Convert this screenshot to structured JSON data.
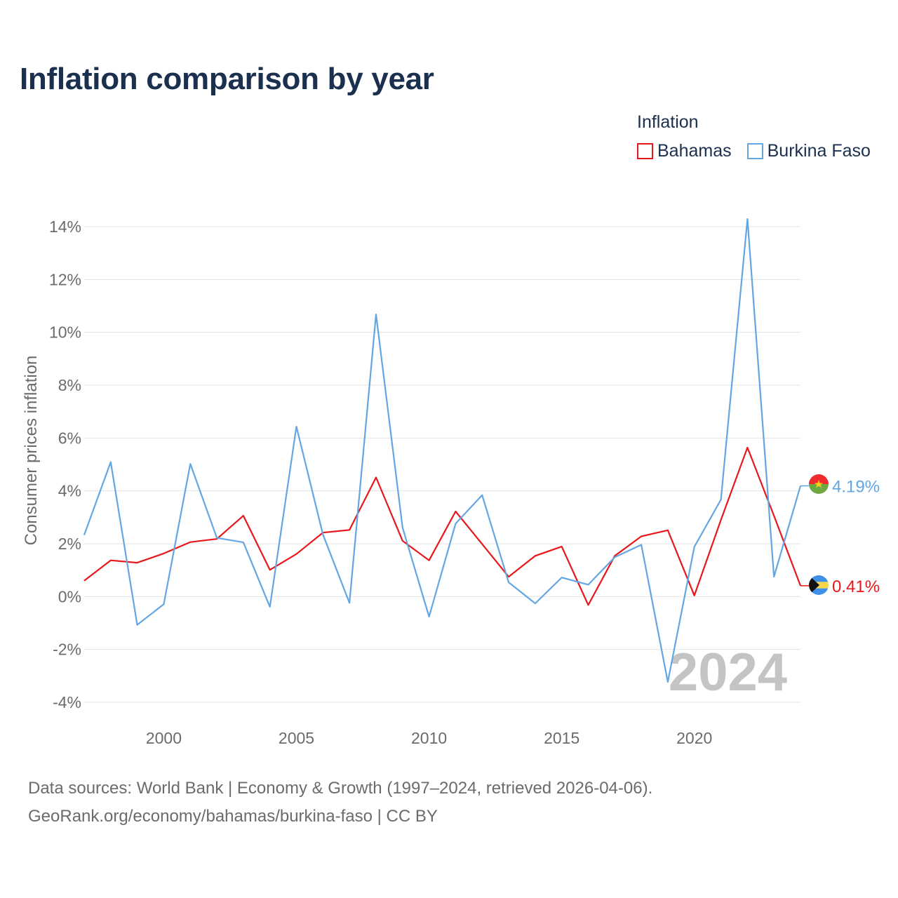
{
  "title": "Inflation comparison by year",
  "legend": {
    "title": "Inflation",
    "items": [
      {
        "name": "Bahamas",
        "color": "#e8171b"
      },
      {
        "name": "Burkina Faso",
        "color": "#64a6e4"
      }
    ]
  },
  "watermark_year": "2024",
  "source": {
    "line1": "Data sources: World Bank | Economy & Growth (1997–2024, retrieved 2026-04-06).",
    "line2": "GeoRank.org/economy/bahamas/burkina-faso | CC BY"
  },
  "chart_data": {
    "type": "line",
    "title": "Inflation comparison by year",
    "xlabel": "",
    "ylabel": "Consumer prices inflation",
    "xlim": [
      1997,
      2024
    ],
    "ylim": [
      -4,
      14
    ],
    "y_ticks": [
      -4,
      -2,
      0,
      2,
      4,
      6,
      8,
      10,
      12,
      14
    ],
    "y_tick_labels": [
      "-4%",
      "-2%",
      "0%",
      "2%",
      "4%",
      "6%",
      "8%",
      "10%",
      "12%",
      "14%"
    ],
    "x_ticks": [
      2000,
      2005,
      2010,
      2015,
      2020
    ],
    "x_tick_labels": [
      "2000",
      "2005",
      "2010",
      "2015",
      "2020"
    ],
    "grid": true,
    "legend_position": "top-right",
    "x": [
      1997,
      1998,
      1999,
      2000,
      2001,
      2002,
      2003,
      2004,
      2005,
      2006,
      2007,
      2008,
      2009,
      2010,
      2011,
      2012,
      2013,
      2014,
      2015,
      2016,
      2017,
      2018,
      2019,
      2020,
      2021,
      2022,
      2023,
      2024
    ],
    "series": [
      {
        "name": "Bahamas",
        "color": "#e8171b",
        "values": [
          0.6,
          1.37,
          1.28,
          1.63,
          2.06,
          2.18,
          3.06,
          1.01,
          1.61,
          2.42,
          2.52,
          4.51,
          2.11,
          1.37,
          3.22,
          1.99,
          0.75,
          1.54,
          1.89,
          -0.32,
          1.54,
          2.28,
          2.51,
          0.04,
          2.9,
          5.64,
          3.06,
          0.41
        ],
        "end_label": "0.41%"
      },
      {
        "name": "Burkina Faso",
        "color": "#64a6e4",
        "values": [
          2.33,
          5.09,
          -1.07,
          -0.29,
          5.02,
          2.22,
          2.05,
          -0.39,
          6.43,
          2.35,
          -0.24,
          10.68,
          2.61,
          -0.76,
          2.76,
          3.84,
          0.54,
          -0.26,
          0.72,
          0.45,
          1.49,
          1.96,
          -3.23,
          1.88,
          3.67,
          14.29,
          0.75,
          4.19
        ],
        "end_label": "4.19%"
      }
    ]
  }
}
